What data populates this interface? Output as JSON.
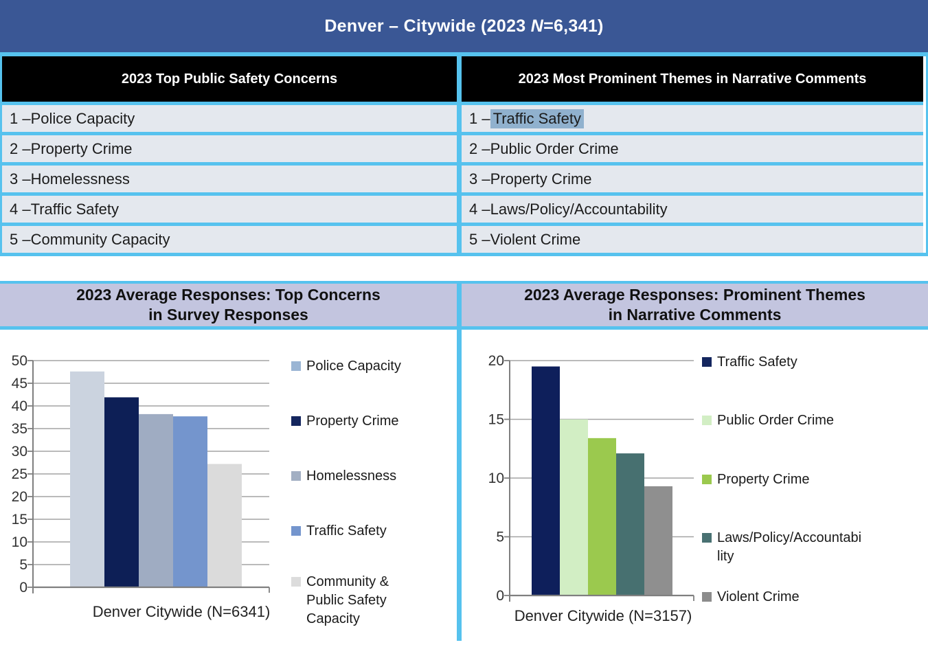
{
  "banner": {
    "part1": "Denver – Citywide (2023 ",
    "n": "N",
    "part2": "=6,341)"
  },
  "colors": {
    "banner_bg": "#3A5795",
    "accent_line": "#56C2EE",
    "header_bg": "#000000",
    "row_bg": "#E4E8EE",
    "highlight": "#90B1CE",
    "title_bg": "#C3C5DF",
    "gridline": "#A3A3A3",
    "axis": "#7F7F7F"
  },
  "tables": {
    "concerns": {
      "header": "2023 Top Public Safety Concerns",
      "rows": [
        {
          "prefix": "1 – ",
          "text": "Police Capacity"
        },
        {
          "prefix": "2 – ",
          "text": "Property Crime"
        },
        {
          "prefix": "3 – ",
          "text": "Homelessness"
        },
        {
          "prefix": "4 – ",
          "text": "Traffic Safety"
        },
        {
          "prefix": "5 – ",
          "text": "Community Capacity"
        }
      ]
    },
    "themes": {
      "header": "2023 Most Prominent Themes in Narrative Comments",
      "rows": [
        {
          "prefix": "1 – ",
          "text": "Traffic Safety",
          "highlighted": true
        },
        {
          "prefix": "2 – ",
          "text": "Public Order Crime"
        },
        {
          "prefix": "3 – ",
          "text": "Property Crime"
        },
        {
          "prefix": "4 – ",
          "text": "Laws/Policy/Accountability"
        },
        {
          "prefix": "5 – ",
          "text": "Violent Crime"
        }
      ]
    }
  },
  "chart_data": [
    {
      "type": "bar",
      "title_line1": "2023 Average Responses: Top Concerns",
      "title_line2": "in Survey Responses",
      "categories": [
        "Denver Citywide (N=6341)"
      ],
      "xlabel": "Denver Citywide (N=6341)",
      "ylim": [
        0,
        50
      ],
      "ytick_step": 5,
      "grid": true,
      "legend_position": "right",
      "series": [
        {
          "name": "Police Capacity",
          "value": 47.6,
          "bar_color": "#CBD3DF",
          "legend_color": "#9AB5D4",
          "legend_lines": [
            "Police Capacity"
          ]
        },
        {
          "name": "Property Crime",
          "value": 41.9,
          "bar_color": "#0D1F56",
          "legend_color": "#14265E",
          "legend_lines": [
            "Property Crime"
          ]
        },
        {
          "name": "Homelessness",
          "value": 38.2,
          "bar_color": "#9FACC2",
          "legend_color": "#A2AFC3",
          "legend_lines": [
            "Homelessness"
          ]
        },
        {
          "name": "Traffic Safety",
          "value": 37.7,
          "bar_color": "#7495CD",
          "legend_color": "#7495CD",
          "legend_lines": [
            "Traffic Safety"
          ]
        },
        {
          "name": "Community & Public Safety Capacity",
          "value": 27.2,
          "bar_color": "#DBDBDB",
          "legend_color": "#DCDCDC",
          "legend_lines": [
            "Community &",
            "Public Safety",
            "Capacity"
          ]
        }
      ]
    },
    {
      "type": "bar",
      "title_line1": "2023 Average Responses: Prominent Themes",
      "title_line2": "in Narrative Comments",
      "categories": [
        "Denver Citywide (N=3157)"
      ],
      "xlabel": "Denver Citywide (N=3157)",
      "ylim": [
        0,
        20
      ],
      "ytick_step": 5,
      "grid": true,
      "legend_position": "right",
      "series": [
        {
          "name": "Traffic Safety",
          "value": 19.5,
          "bar_color": "#0E1F5B",
          "legend_color": "#14265E",
          "legend_lines": [
            "Traffic Safety"
          ]
        },
        {
          "name": "Public Order Crime",
          "value": 15.0,
          "bar_color": "#D2EEC4",
          "legend_color": "#D2EEC4",
          "legend_lines": [
            "Public Order Crime"
          ]
        },
        {
          "name": "Property Crime",
          "value": 13.4,
          "bar_color": "#9BC94E",
          "legend_color": "#9BC94E",
          "legend_lines": [
            "Property Crime"
          ]
        },
        {
          "name": "Laws/Policy/Accountability",
          "value": 12.1,
          "bar_color": "#477070",
          "legend_color": "#497172",
          "legend_lines": [
            "Laws/Policy/Accountabi",
            "lity"
          ]
        },
        {
          "name": "Violent Crime",
          "value": 9.3,
          "bar_color": "#8F8F8F",
          "legend_color": "#8C8C8C",
          "legend_lines": [
            "Violent Crime"
          ]
        }
      ]
    }
  ]
}
